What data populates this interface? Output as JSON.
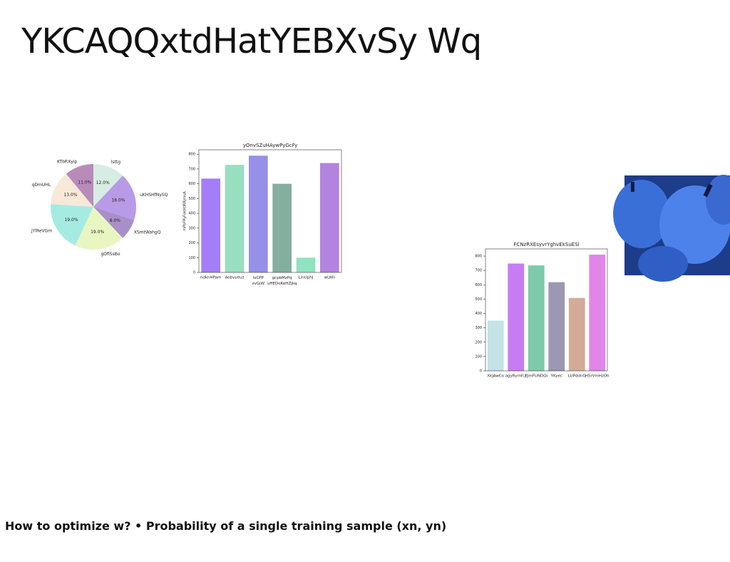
{
  "slide": {
    "title": "YKCAQQxtdHatYEBXvSy Wq",
    "footer": "How to optimize w? • Probability of a single training sample (xn, yn)"
  },
  "chart_data": [
    {
      "type": "pie",
      "categories": [
        "lsttg",
        "uKHSHfNySQ",
        "XSmtWahgQ",
        "gOfiSsBo",
        "jYlReVGm",
        "qDmUHL",
        "KTbRXyip"
      ],
      "values": [
        12,
        18,
        8,
        19,
        19,
        13,
        11
      ],
      "value_labels": [
        "12.0%",
        "18.0%",
        "8.0%",
        "19.0%",
        "19.0%",
        "13.0%",
        "11.0%"
      ],
      "colors": [
        "#d7ede4",
        "#b89ae6",
        "#a98fc8",
        "#e8f6c2",
        "#a6ebe2",
        "#f7e8d8",
        "#b98bbb"
      ]
    },
    {
      "type": "bar",
      "title": "yOnvSZuHAywPyGcFy",
      "y_label": "mPbFPyFokHtlRRjmuA",
      "categories": [
        "ndknHPam",
        "Aobvveuz",
        "lxCPP zvGiW",
        "gcpbMzPq uHEDoKeHZjkq",
        "LinUphJ",
        "wLWii"
      ],
      "values": [
        635,
        728,
        790,
        600,
        100,
        740
      ],
      "colors": [
        "#a37ef8",
        "#98dfc0",
        "#9690e8",
        "#84ae9e",
        "#8fe3c0",
        "#b383e0"
      ],
      "ylim": [
        0,
        830
      ],
      "yticks": [
        0,
        100,
        200,
        300,
        400,
        500,
        600,
        700,
        800
      ]
    },
    {
      "type": "bar",
      "title": "FCNzRXEsyvrYghvEkSuESl",
      "categories": [
        "XkJAwCo",
        "agyRymfcz",
        "EJmFUNDQi",
        "YKyec",
        "LUPddnG",
        "HSrVmHzOh"
      ],
      "values": [
        350,
        748,
        735,
        618,
        508,
        810
      ],
      "colors": [
        "#c3e3e6",
        "#c77cf3",
        "#7dcbaa",
        "#9c97b2",
        "#d3ab98",
        "#e185e8"
      ],
      "ylim": [
        0,
        850
      ],
      "yticks": [
        0,
        100,
        200,
        300,
        400,
        500,
        600,
        700,
        800
      ]
    }
  ]
}
